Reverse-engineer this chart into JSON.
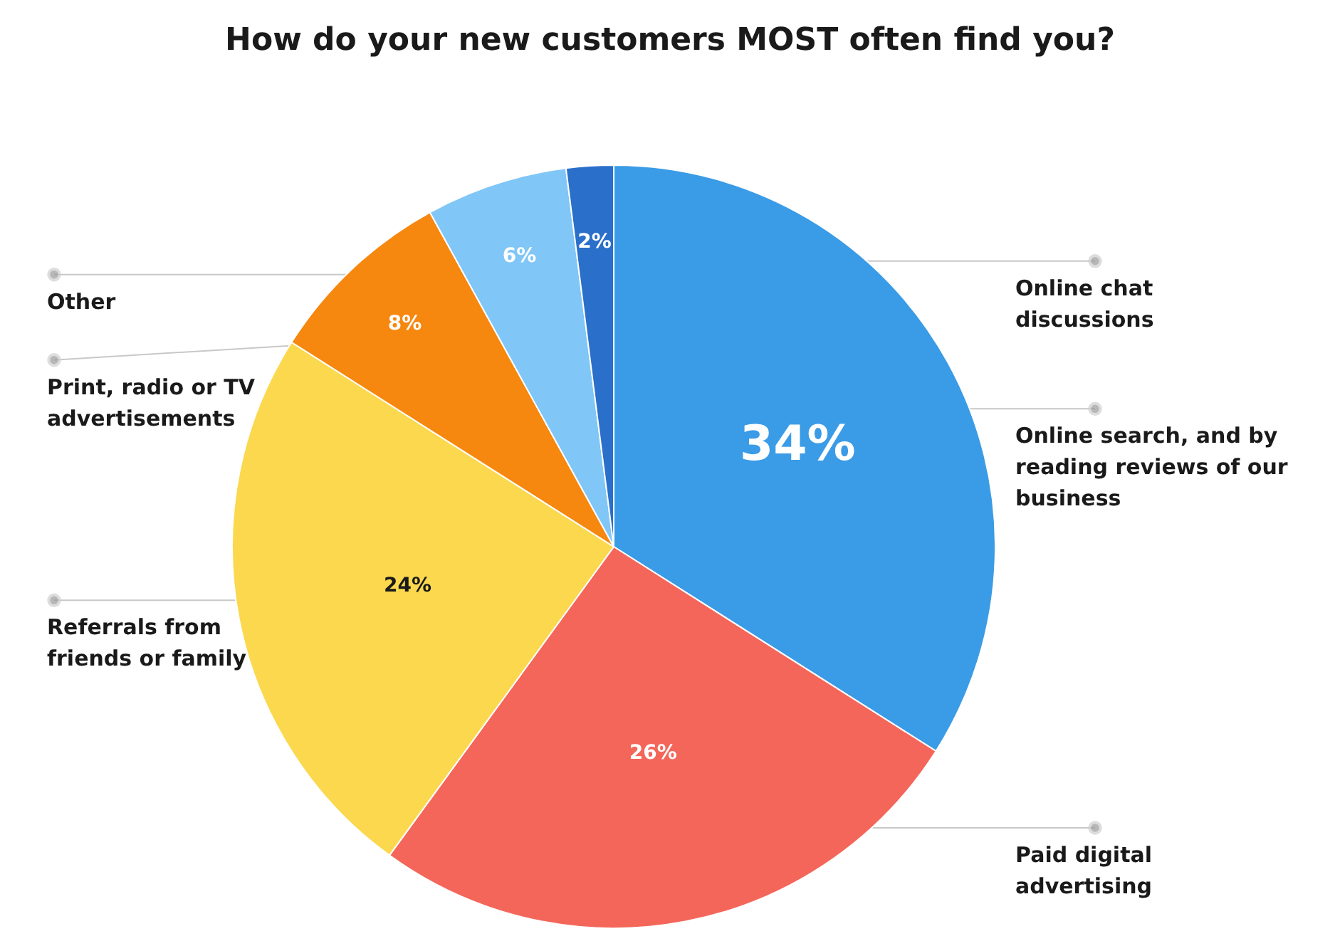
{
  "chart_data": {
    "type": "pie",
    "title": "How do your new customers MOST often find you?",
    "categories": [
      "Online search, and by reading reviews of our business",
      "Paid digital advertising",
      "Referrals from friends or family",
      "Print, radio or TV advertisements",
      "Other",
      "Online chat discussions"
    ],
    "values": [
      34,
      26,
      24,
      8,
      6,
      2
    ],
    "value_labels": [
      "34%",
      "26%",
      "24%",
      "8%",
      "6%",
      "2%"
    ],
    "colors": [
      "#3a9be6",
      "#f4665a",
      "#fbd84e",
      "#f6870f",
      "#80c6f7",
      "#2a6fca"
    ]
  }
}
